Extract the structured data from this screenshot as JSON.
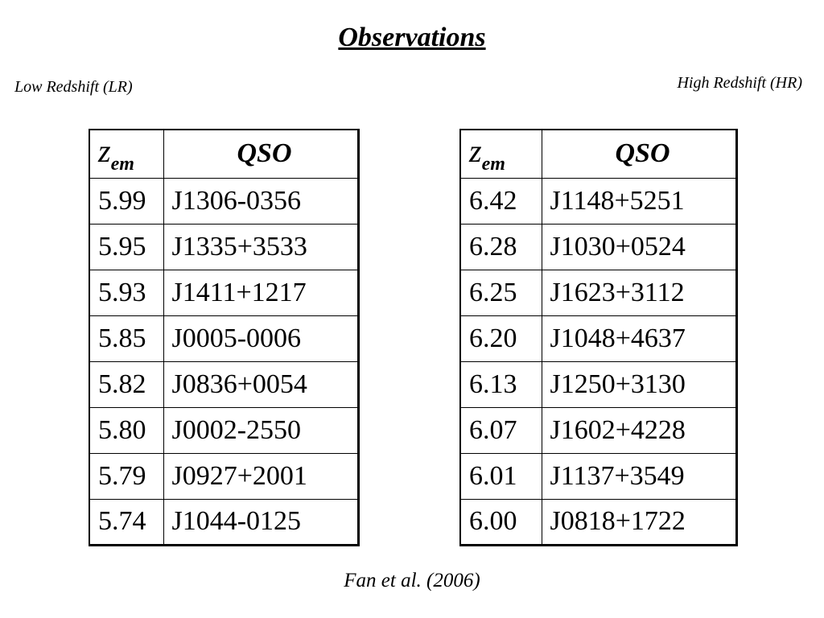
{
  "title": "Observations",
  "left_label": "Low Redshift (LR)",
  "right_label": "High Redshift (HR)",
  "tables": [
    {
      "header": {
        "symbol": "z",
        "subscript": "em",
        "qso": "QSO"
      },
      "rows": [
        [
          "5.99",
          "J1306-0356"
        ],
        [
          "5.95",
          "J1335+3533"
        ],
        [
          "5.93",
          "J1411+1217"
        ],
        [
          "5.85",
          "J0005-0006"
        ],
        [
          "5.82",
          "J0836+0054"
        ],
        [
          "5.80",
          "J0002-2550"
        ],
        [
          "5.79",
          "J0927+2001"
        ],
        [
          "5.74",
          "J1044-0125"
        ]
      ]
    },
    {
      "header": {
        "symbol": "z",
        "subscript": "em",
        "qso": "QSO"
      },
      "rows": [
        [
          "6.42",
          "J1148+5251"
        ],
        [
          "6.28",
          "J1030+0524"
        ],
        [
          "6.25",
          "J1623+3112"
        ],
        [
          "6.20",
          "J1048+4637"
        ],
        [
          "6.13",
          "J1250+3130"
        ],
        [
          "6.07",
          "J1602+4228"
        ],
        [
          "6.01",
          "J1137+3549"
        ],
        [
          "6.00",
          "J0818+1722"
        ]
      ]
    }
  ],
  "citation": "Fan et al. (2006)"
}
